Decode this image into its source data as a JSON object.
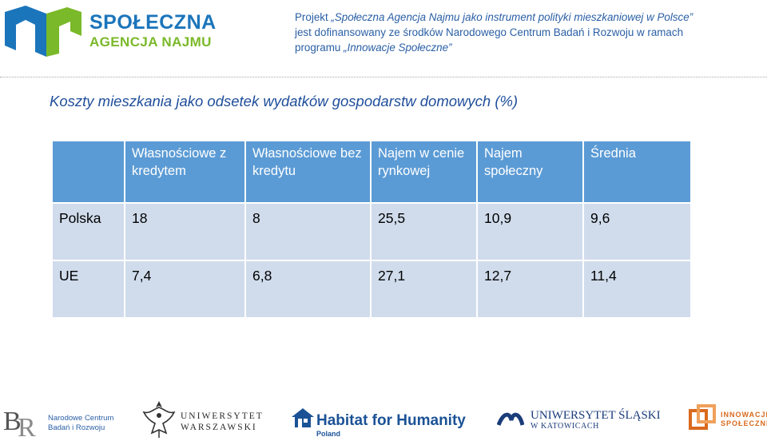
{
  "header": {
    "logo": {
      "line1": "SPOŁECZNA",
      "line2": "AGENCJA NAJMU",
      "colors": {
        "blue": "#1b75bb",
        "green": "#7ab929"
      }
    },
    "project_line1_prefix": "Projekt ",
    "project_name_quoted": "„Społeczna Agencja Najmu jako instrument polityki mieszkaniowej w Polsce”",
    "project_line2": "jest dofinansowany ze środków Narodowego Centrum Badań i Rozwoju w ramach",
    "project_line3_prefix": "programu ",
    "program_name_quoted": "„Innowacje Społeczne”"
  },
  "slide": {
    "title": "Koszty mieszkania jako odsetek wydatków gospodarstw domowych (%)"
  },
  "table": {
    "headers": [
      "",
      "Własnościowe z kredytem",
      "Własnościowe bez kredytu",
      "Najem w cenie rynkowej",
      "Najem społeczny",
      "Średnia"
    ],
    "rows": [
      [
        "Polska",
        "18",
        "8",
        "25,5",
        "10,9",
        "9,6"
      ],
      [
        "UE",
        "7,4",
        "6,8",
        "27,1",
        "12,7",
        "11,4"
      ]
    ],
    "colors": {
      "header_bg": "#5b9bd5",
      "row_bg": "#d0dcec"
    }
  },
  "footer": {
    "ncbr": {
      "line1": "Narodowe Centrum",
      "line2": "Badań i Rozwoju"
    },
    "uw": {
      "line1": "UNIWERSYTET",
      "line2": "WARSZAWSKI"
    },
    "habitat": {
      "name": "Habitat for Humanity",
      "country": "Poland"
    },
    "us": {
      "line1": "UNIWERSYTET ŚLĄSKI",
      "line2": "W KATOWICACH"
    },
    "is": {
      "line1": "INNOWACJE",
      "line2": "SPOŁECZNE"
    }
  }
}
